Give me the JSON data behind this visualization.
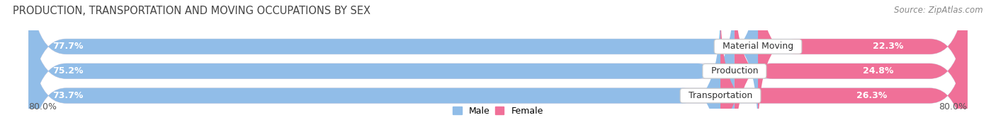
{
  "title": "PRODUCTION, TRANSPORTATION AND MOVING OCCUPATIONS BY SEX",
  "source": "Source: ZipAtlas.com",
  "categories": [
    "Material Moving",
    "Production",
    "Transportation"
  ],
  "male_values": [
    77.7,
    75.2,
    73.7
  ],
  "female_values": [
    22.3,
    24.8,
    26.3
  ],
  "male_color": "#91bde8",
  "female_color": "#f07098",
  "bar_bg_color": "#e8e8f0",
  "bar_bg_edge_color": "#d0d0e0",
  "male_label": "Male",
  "female_label": "Female",
  "x_left_label": "80.0%",
  "x_right_label": "80.0%",
  "title_fontsize": 10.5,
  "source_fontsize": 8.5,
  "legend_fontsize": 9,
  "bar_label_fontsize": 9,
  "category_fontsize": 9,
  "background_color": "#ffffff",
  "bar_height": 0.62,
  "total_range": 100.0
}
